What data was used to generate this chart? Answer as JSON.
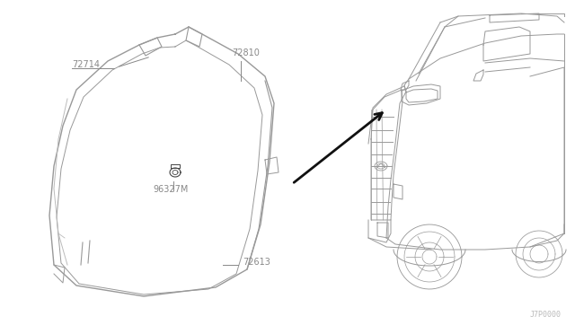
{
  "bg_color": "#ffffff",
  "lc": "#999999",
  "lc2": "#bbbbbb",
  "tc": "#888888",
  "arrow_color": "#111111",
  "watermark": "J7P0000",
  "figsize": [
    6.4,
    3.72
  ],
  "dpi": 100
}
